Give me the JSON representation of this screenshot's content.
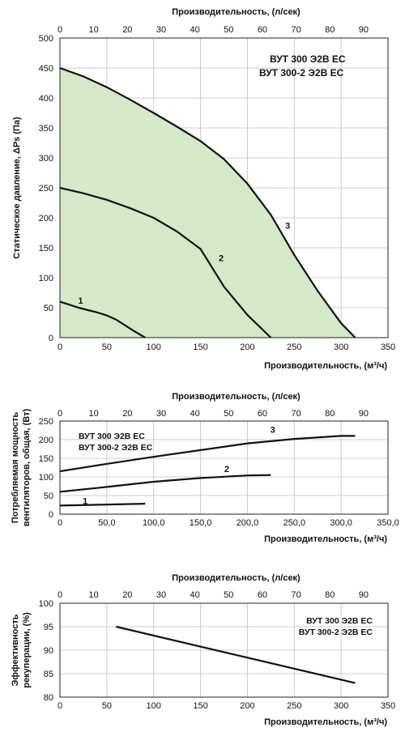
{
  "chart_data": [
    {
      "type": "line",
      "area_fill": "#d5e8c8",
      "title_lines": [
        "ВУТ 300 Э2В ЕС",
        "ВУТ 300-2 Э2В ЕС"
      ],
      "xlabel": "Производительность, (м³/ч)",
      "x2label": "Производительность, (л/сек)",
      "ylabel": "Статическое давление, ΔPs (Па)",
      "xlim": [
        0,
        350
      ],
      "ylim": [
        0,
        500
      ],
      "x_ticks": [
        "0",
        "50",
        "100",
        "150",
        "200",
        "250",
        "300",
        "350"
      ],
      "y_ticks": [
        "0",
        "50",
        "100",
        "150",
        "200",
        "250",
        "300",
        "350",
        "400",
        "450",
        "500"
      ],
      "x2_ticks": [
        "0",
        "10",
        "20",
        "30",
        "40",
        "50",
        "60",
        "70",
        "80",
        "90"
      ],
      "x2_scale": 3.6,
      "series": [
        {
          "name": "1",
          "x": [
            0,
            10,
            20,
            30,
            40,
            50,
            60,
            70,
            80,
            91
          ],
          "y": [
            60,
            55,
            50,
            46,
            42,
            37,
            30,
            20,
            10,
            0
          ]
        },
        {
          "name": "2",
          "x": [
            0,
            25,
            50,
            75,
            100,
            125,
            150,
            175,
            200,
            225
          ],
          "y": [
            250,
            241,
            230,
            216,
            200,
            177,
            148,
            85,
            38,
            0
          ]
        },
        {
          "name": "3",
          "x": [
            0,
            25,
            50,
            75,
            100,
            125,
            150,
            175,
            200,
            225,
            250,
            275,
            300,
            315
          ],
          "y": [
            450,
            436,
            418,
            397,
            375,
            352,
            328,
            298,
            257,
            205,
            138,
            78,
            24,
            0
          ]
        }
      ],
      "labels": [
        {
          "text": "1",
          "x": 22,
          "y": 57
        },
        {
          "text": "2",
          "x": 172,
          "y": 128
        },
        {
          "text": "3",
          "x": 243,
          "y": 182
        }
      ]
    },
    {
      "type": "line",
      "title_lines": [
        "ВУТ 300 Э2В ЕС",
        "ВУТ 300-2 Э2В ЕС"
      ],
      "xlabel": "Производительность, (м³/ч)",
      "x2label": "Производительность, (л/сек)",
      "ylabel_lines": [
        "Потребляемая мощность",
        "вентиляторов, общая, (Вт)"
      ],
      "xlim": [
        0,
        350
      ],
      "ylim": [
        0,
        250
      ],
      "x_ticks": [
        "0",
        "50,0",
        "100,0",
        "150,0",
        "200,0",
        "250,0",
        "300,0",
        "350,0"
      ],
      "y_ticks": [
        "0",
        "50",
        "100",
        "150",
        "200",
        "250"
      ],
      "x2_ticks": [
        "0",
        "10",
        "20",
        "30",
        "40",
        "50",
        "60",
        "70",
        "80",
        "90"
      ],
      "x2_scale": 3.6,
      "series": [
        {
          "name": "1",
          "x": [
            0,
            91
          ],
          "y": [
            23,
            28
          ]
        },
        {
          "name": "2",
          "x": [
            0,
            50,
            100,
            150,
            200,
            225
          ],
          "y": [
            60,
            73,
            87,
            97,
            104,
            105
          ]
        },
        {
          "name": "3",
          "x": [
            0,
            50,
            100,
            150,
            200,
            250,
            300,
            315
          ],
          "y": [
            115,
            135,
            154,
            172,
            190,
            202,
            210,
            210
          ]
        }
      ],
      "labels": [
        {
          "text": "1",
          "x": 27,
          "y": 27
        },
        {
          "text": "2",
          "x": 178,
          "y": 113
        },
        {
          "text": "3",
          "x": 227,
          "y": 218
        }
      ]
    },
    {
      "type": "line",
      "title_lines": [
        "ВУТ 300 Э2В ЕС",
        "ВУТ 300-2 Э2В ЕС"
      ],
      "xlabel": "Производительность, (м³/ч)",
      "x2label": "Производительность, (л/сек)",
      "ylabel_lines": [
        "Эффективность",
        "рекуперации, (%)"
      ],
      "xlim": [
        0,
        350
      ],
      "ylim": [
        80,
        100
      ],
      "x_ticks": [
        "0",
        "50",
        "100",
        "150",
        "200",
        "250",
        "300",
        "350"
      ],
      "y_ticks": [
        "80",
        "85",
        "90",
        "95",
        "100"
      ],
      "x2_ticks": [
        "0",
        "10",
        "20",
        "30",
        "40",
        "50",
        "60",
        "70",
        "80",
        "90"
      ],
      "x2_scale": 3.6,
      "series": [
        {
          "name": "",
          "x": [
            60,
            315
          ],
          "y": [
            95,
            83
          ]
        }
      ],
      "labels": []
    }
  ]
}
